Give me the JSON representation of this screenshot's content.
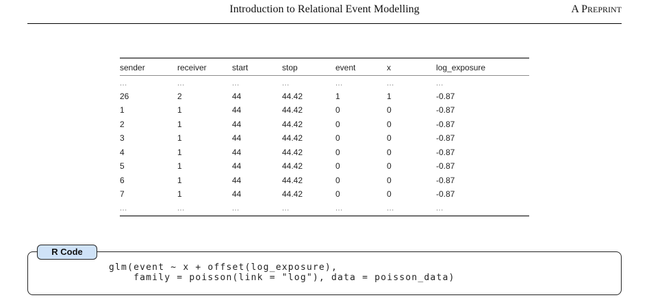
{
  "header": {
    "title": "Introduction to Relational Event Modelling",
    "right_label_first": "A P",
    "right_label_rest": "REPRINT"
  },
  "table": {
    "columns": [
      "sender",
      "receiver",
      "start",
      "stop",
      "event",
      "x",
      "log_exposure"
    ],
    "rows": [
      [
        "...",
        "...",
        "...",
        "...",
        "...",
        "...",
        "..."
      ],
      [
        "26",
        "2",
        "44",
        "44.42",
        "1",
        "1",
        "-0.87"
      ],
      [
        "1",
        "1",
        "44",
        "44.42",
        "0",
        "0",
        "-0.87"
      ],
      [
        "2",
        "1",
        "44",
        "44.42",
        "0",
        "0",
        "-0.87"
      ],
      [
        "3",
        "1",
        "44",
        "44.42",
        "0",
        "0",
        "-0.87"
      ],
      [
        "4",
        "1",
        "44",
        "44.42",
        "0",
        "0",
        "-0.87"
      ],
      [
        "5",
        "1",
        "44",
        "44.42",
        "0",
        "0",
        "-0.87"
      ],
      [
        "6",
        "1",
        "44",
        "44.42",
        "0",
        "0",
        "-0.87"
      ],
      [
        "7",
        "1",
        "44",
        "44.42",
        "0",
        "0",
        "-0.87"
      ],
      [
        "...",
        "...",
        "...",
        "...",
        "...",
        "...",
        "..."
      ]
    ]
  },
  "code_block": {
    "label": "R Code",
    "lines": [
      "glm(event ~ x + offset(log_exposure),",
      "    family = poisson(link = \"log\"), data = poisson_data)"
    ]
  }
}
